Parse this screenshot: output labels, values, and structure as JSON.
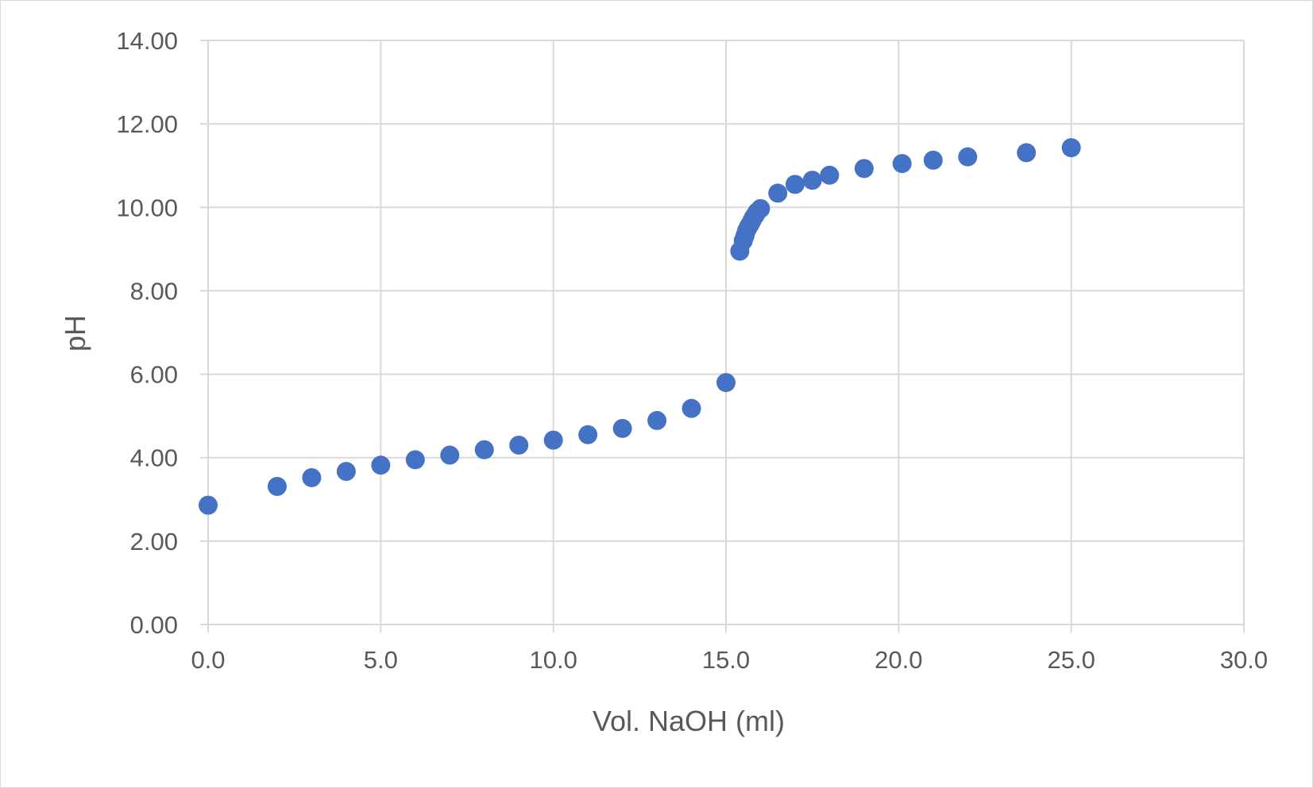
{
  "chart_data": {
    "type": "scatter",
    "title": "",
    "xlabel": "Vol. NaOH (ml)",
    "ylabel": "pH",
    "xlim": [
      0,
      30
    ],
    "ylim": [
      0,
      14
    ],
    "x_ticks": [
      "0.0",
      "5.0",
      "10.0",
      "15.0",
      "20.0",
      "25.0",
      "30.0"
    ],
    "y_ticks": [
      "0.00",
      "2.00",
      "4.00",
      "6.00",
      "8.00",
      "10.00",
      "12.00",
      "14.00"
    ],
    "grid": true,
    "legend": "none",
    "series": [
      {
        "color": "#4472c4",
        "points": [
          [
            0.0,
            2.86
          ],
          [
            2.0,
            3.31
          ],
          [
            3.0,
            3.52
          ],
          [
            4.0,
            3.67
          ],
          [
            5.0,
            3.82
          ],
          [
            6.0,
            3.95
          ],
          [
            7.0,
            4.06
          ],
          [
            8.0,
            4.19
          ],
          [
            9.0,
            4.3
          ],
          [
            10.0,
            4.42
          ],
          [
            11.0,
            4.55
          ],
          [
            12.0,
            4.7
          ],
          [
            13.0,
            4.89
          ],
          [
            14.0,
            5.18
          ],
          [
            15.0,
            5.8
          ],
          [
            15.4,
            8.95
          ],
          [
            15.5,
            9.2
          ],
          [
            15.55,
            9.32
          ],
          [
            15.6,
            9.45
          ],
          [
            15.65,
            9.53
          ],
          [
            15.7,
            9.6
          ],
          [
            15.75,
            9.68
          ],
          [
            15.8,
            9.76
          ],
          [
            15.85,
            9.82
          ],
          [
            15.9,
            9.89
          ],
          [
            16.0,
            9.97
          ],
          [
            16.5,
            10.34
          ],
          [
            17.0,
            10.55
          ],
          [
            17.5,
            10.65
          ],
          [
            18.0,
            10.77
          ],
          [
            19.0,
            10.93
          ],
          [
            20.1,
            11.05
          ],
          [
            21.0,
            11.13
          ],
          [
            22.0,
            11.21
          ],
          [
            23.7,
            11.31
          ],
          [
            25.0,
            11.43
          ]
        ]
      }
    ]
  }
}
